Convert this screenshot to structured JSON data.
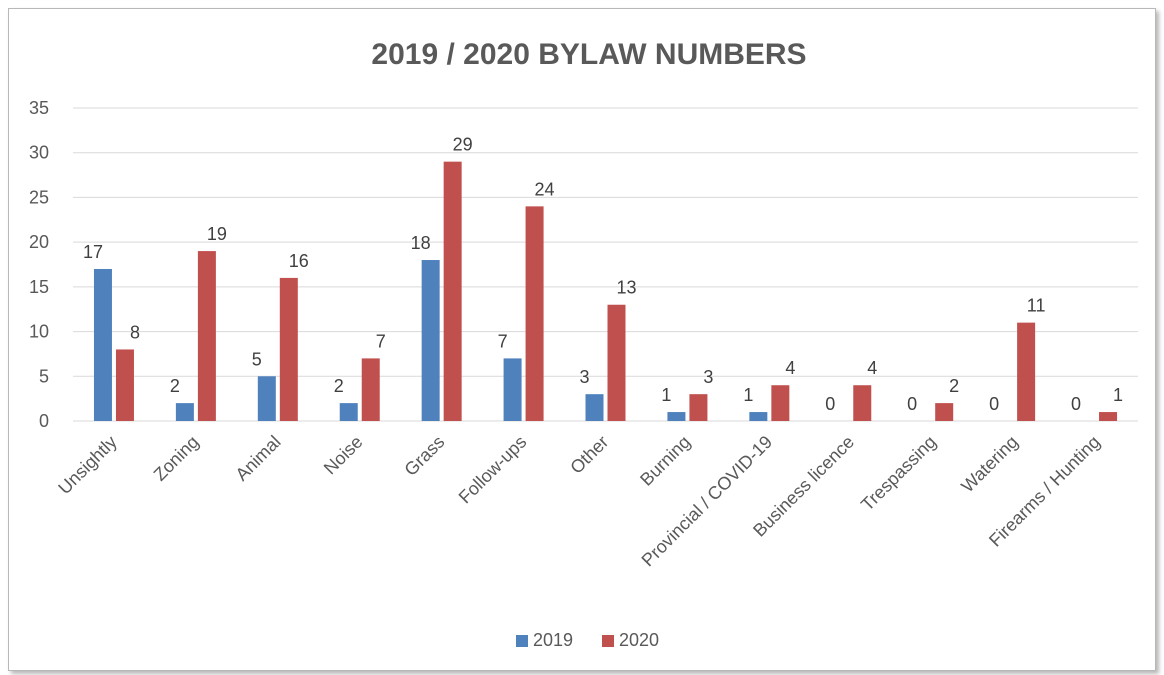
{
  "chart_data": {
    "type": "bar",
    "title": "2019 / 2020 BYLAW NUMBERS",
    "categories": [
      "Unsightly",
      "Zoning",
      "Animal",
      "Noise",
      "Grass",
      "Follow-ups",
      "Other",
      "Burning",
      "Provincial / COVID-19",
      "Business licence",
      "Trespassing",
      "Watering",
      "Firearms / Hunting"
    ],
    "series": [
      {
        "name": "2019",
        "color": "#4f81bd",
        "values": [
          17,
          2,
          5,
          2,
          18,
          7,
          3,
          1,
          1,
          0,
          0,
          0,
          0
        ]
      },
      {
        "name": "2020",
        "color": "#c0504d",
        "values": [
          8,
          19,
          16,
          7,
          29,
          24,
          13,
          3,
          4,
          4,
          2,
          11,
          1
        ]
      }
    ],
    "ylim": [
      0,
      35
    ],
    "yticks": [
      "0",
      "5",
      "10",
      "15",
      "20",
      "25",
      "30",
      "35"
    ],
    "grid": true,
    "legend_position": "bottom",
    "data_labels": true
  }
}
